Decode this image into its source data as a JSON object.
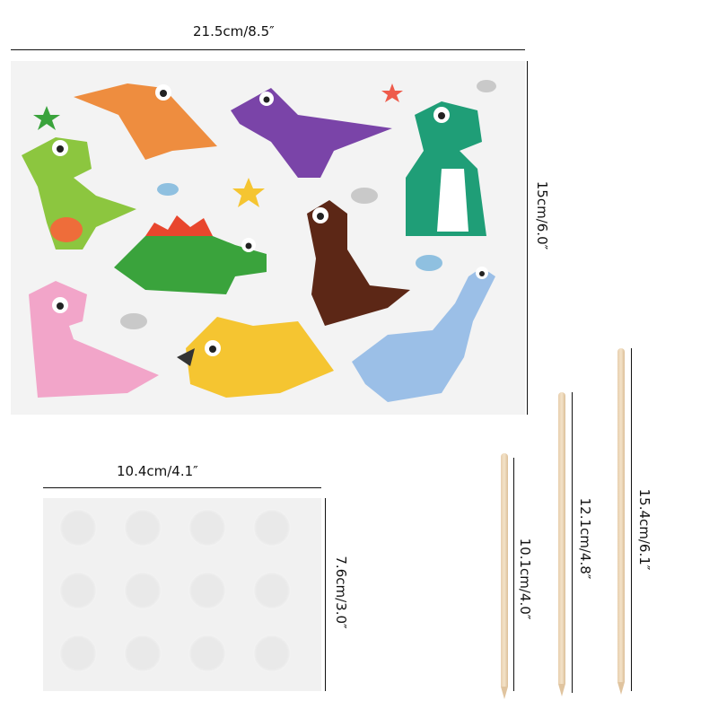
{
  "sticker_sheet": {
    "width_label": "21.5cm/8.5″",
    "height_label": "15cm/6.0″",
    "stickers": [
      "orange-pterodactyl",
      "purple-raptor",
      "green-t-rex-right",
      "lime-t-rex",
      "green-stegosaurus",
      "brown-dinosaur",
      "pink-dinosaur",
      "yellow-triceratops",
      "blue-brachiosaurus"
    ]
  },
  "adhesive_dots": {
    "width_label": "10.4cm/4.1″",
    "height_label": "7.6cm/3.0″",
    "rows": 3,
    "columns": 4
  },
  "sticks": [
    {
      "label": "10.1cm/4.0″"
    },
    {
      "label": "12.1cm/4.8″"
    },
    {
      "label": "15.4cm/6.1″"
    }
  ]
}
